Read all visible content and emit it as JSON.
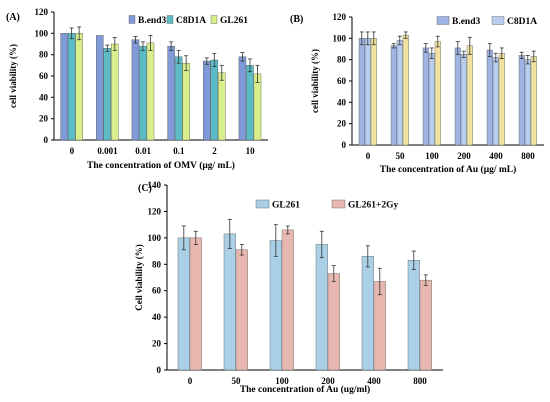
{
  "chart_data": [
    {
      "panel_label": "(A)",
      "type": "bar",
      "categories": [
        "0",
        "0.001",
        "0.01",
        "0.1",
        "2",
        "10"
      ],
      "series": [
        {
          "name": "B.end3",
          "color": "#7f9ad6",
          "values": [
            100,
            98,
            94,
            88,
            74,
            78
          ],
          "errors": [
            0,
            0,
            3,
            4,
            3,
            4
          ]
        },
        {
          "name": "C8D1A",
          "color": "#5bbcc6",
          "values": [
            100,
            86,
            88,
            78,
            75,
            70
          ],
          "errors": [
            5,
            3,
            4,
            6,
            6,
            6
          ]
        },
        {
          "name": "GL261",
          "color": "#d9ef8c",
          "values": [
            100,
            90,
            91,
            72,
            63,
            62
          ],
          "errors": [
            6,
            6,
            7,
            7,
            7,
            8
          ]
        }
      ],
      "xlabel": "The concentration of OMV (μg/ mL)",
      "ylabel": "cell viability (%)",
      "ylim": [
        0,
        120
      ],
      "yticks": [
        0,
        20,
        40,
        60,
        80,
        100,
        120
      ],
      "grid": false,
      "legend": "top-right"
    },
    {
      "panel_label": "(B)",
      "type": "bar",
      "categories": [
        "0",
        "50",
        "100",
        "200",
        "400",
        "800"
      ],
      "series": [
        {
          "name": "B.end3",
          "color": "#9fb3e5",
          "values": [
            100,
            93,
            91,
            91,
            89,
            84
          ],
          "errors": [
            6,
            2,
            4,
            6,
            6,
            3
          ]
        },
        {
          "name": "C8D1A",
          "color": "#b8cdf0",
          "values": [
            100,
            98,
            86,
            85,
            82,
            80
          ],
          "errors": [
            6,
            4,
            5,
            3,
            4,
            4
          ]
        },
        {
          "name": "",
          "color": "#f2e3a1",
          "values": [
            100,
            103,
            97,
            93,
            86,
            83
          ],
          "errors": [
            6,
            3,
            5,
            8,
            5,
            5
          ]
        }
      ],
      "xlabel": "The concentration of Au (μg/ mL)",
      "ylabel": "cell viability (%)",
      "ylim": [
        0,
        120
      ],
      "yticks": [
        0,
        20,
        40,
        60,
        80,
        100,
        120
      ],
      "grid": false,
      "legend": "top-right"
    },
    {
      "panel_label": "(C)",
      "type": "bar",
      "categories": [
        "0",
        "50",
        "100",
        "200",
        "400",
        "800"
      ],
      "series": [
        {
          "name": "GL261",
          "color": "#a9d0e6",
          "values": [
            100,
            103,
            98,
            95,
            86,
            83
          ],
          "errors": [
            9,
            11,
            12,
            10,
            8,
            7
          ]
        },
        {
          "name": "GL261+2Gy",
          "color": "#e8b8b0",
          "values": [
            100,
            91,
            106,
            73,
            67,
            68
          ],
          "errors": [
            5,
            4,
            3,
            6,
            10,
            4
          ]
        }
      ],
      "xlabel": "The concentration of Au (ug/ml)",
      "ylabel": "Cell viability (%)",
      "ylim": [
        0,
        140
      ],
      "yticks": [
        0,
        20,
        40,
        60,
        80,
        100,
        120,
        140
      ],
      "grid": false,
      "legend": "top"
    }
  ]
}
